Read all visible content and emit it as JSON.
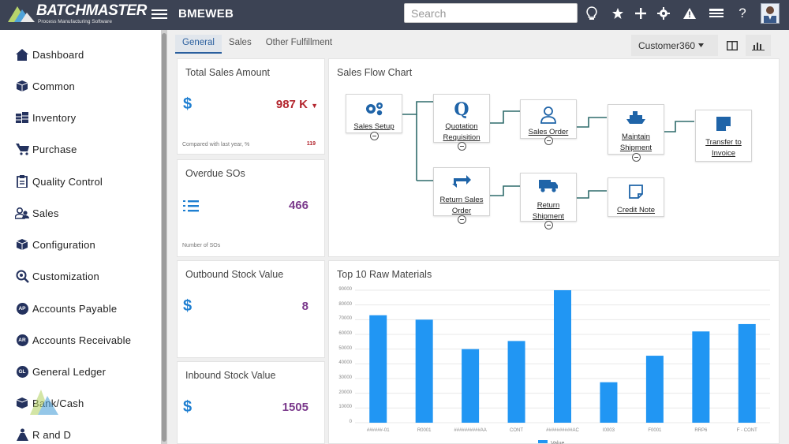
{
  "app": {
    "logo_title": "BATCHMASTER",
    "logo_subtitle": "Process Manufacturing Software",
    "company": "BMEWEB"
  },
  "search": {
    "placeholder": "Search"
  },
  "topbar_icons": [
    "lightbulb-icon",
    "star-icon",
    "plus-icon",
    "gear-icon",
    "alert-icon",
    "list-icon",
    "help-icon",
    "user-avatar"
  ],
  "topbar_help": "?",
  "sidebar": {
    "items": [
      {
        "label": "Dashboard",
        "icon": "home-icon"
      },
      {
        "label": "Common",
        "icon": "box-icon"
      },
      {
        "label": "Inventory",
        "icon": "inventory-icon"
      },
      {
        "label": "Purchase",
        "icon": "cart-icon"
      },
      {
        "label": "Quality Control",
        "icon": "clipboard-icon"
      },
      {
        "label": "Sales",
        "icon": "users-icon"
      },
      {
        "label": "Configuration",
        "icon": "box-icon"
      },
      {
        "label": "Customization",
        "icon": "magnifier-gear-icon"
      },
      {
        "label": "Accounts Payable",
        "icon": "ap-icon",
        "badge": "AP"
      },
      {
        "label": "Accounts Receivable",
        "icon": "ar-icon",
        "badge": "AR"
      },
      {
        "label": "General Ledger",
        "icon": "gl-icon",
        "badge": "GL"
      },
      {
        "label": "Bank/Cash",
        "icon": "box-icon"
      },
      {
        "label": "R and D",
        "icon": "flask-icon"
      }
    ]
  },
  "tabs": [
    {
      "label": "General",
      "active": true
    },
    {
      "label": "Sales",
      "active": false
    },
    {
      "label": "Other Fulfillment",
      "active": false
    }
  ],
  "view_selector": {
    "label": "Customer360"
  },
  "kpis": {
    "total_sales": {
      "title": "Total Sales Amount",
      "value": "987 K",
      "foot": "Compared with last year, %",
      "foot_value": "119",
      "color": "#b3262e"
    },
    "overdue_sos": {
      "title": "Overdue SOs",
      "value": "466",
      "foot": "Number of SOs",
      "color": "#7b3a8c"
    },
    "outbound_stock": {
      "title": "Outbound Stock Value",
      "value": "8",
      "color": "#7b3a8c"
    },
    "inbound_stock": {
      "title": "Inbound Stock Value",
      "value": "1505",
      "color": "#7b3a8c"
    }
  },
  "currency_symbol": "$",
  "flow": {
    "title": "Sales Flow Chart",
    "nodes": {
      "sales_setup": "Sales Setup",
      "quotation": "Quotation Requisition",
      "sales_order": "Sales Order",
      "maintain_shipment": "Maintain Shipment",
      "transfer_invoice": "Transfer to Invoice",
      "return_sales_order": "Return Sales Order",
      "return_shipment": "Return Shipment",
      "credit_note": "Credit Note"
    }
  },
  "chart_data": {
    "type": "bar",
    "title": "Top 10 Raw Materials",
    "categories": [
      "######-01",
      "R0001",
      "##########AA",
      "CONT",
      "##########AC",
      "I0003",
      "F0001",
      "RRP6",
      "F - CONT"
    ],
    "series": [
      {
        "name": "Value",
        "values": [
          73000,
          70000,
          50000,
          55500,
          90000,
          27500,
          45500,
          62000,
          67000
        ],
        "color": "#2196f3"
      }
    ],
    "ylim": [
      0,
      90000
    ],
    "yticks": [
      0,
      10000,
      20000,
      30000,
      40000,
      50000,
      60000,
      70000,
      80000,
      90000
    ],
    "grid": true,
    "legend": "bottom"
  }
}
